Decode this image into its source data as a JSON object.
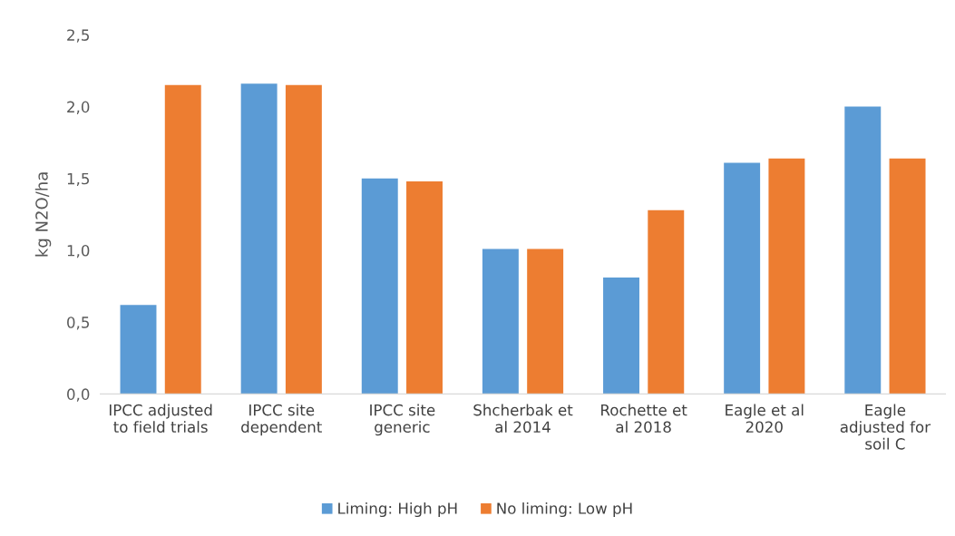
{
  "chart_data": {
    "type": "bar",
    "ylabel": "kg N2O/ha",
    "categories": [
      "IPCC adjusted\nto field trials",
      "IPCC site\ndependent",
      "IPCC site\ngeneric",
      "Shcherbak et\nal 2014",
      "Rochette et\nal 2018",
      "Eagle et al\n2020",
      "Eagle\nadjusted for\nsoil C"
    ],
    "series": [
      {
        "name": "Liming: High pH",
        "color": "#5b9bd5",
        "values": [
          0.62,
          2.16,
          1.5,
          1.01,
          0.81,
          1.61,
          2.0
        ]
      },
      {
        "name": "No liming: Low pH",
        "color": "#ed7d31",
        "values": [
          2.15,
          2.15,
          1.48,
          1.01,
          1.28,
          1.64,
          1.64
        ]
      }
    ],
    "ylim": [
      0,
      2.5
    ],
    "yticks": [
      {
        "value": 0,
        "label": "0,0"
      },
      {
        "value": 0.5,
        "label": "0,5"
      },
      {
        "value": 1.0,
        "label": "1,0"
      },
      {
        "value": 1.5,
        "label": "1,5"
      },
      {
        "value": 2.0,
        "label": "2,0"
      },
      {
        "value": 2.5,
        "label": "2,5"
      }
    ],
    "grid": false,
    "legend": "bottom"
  }
}
